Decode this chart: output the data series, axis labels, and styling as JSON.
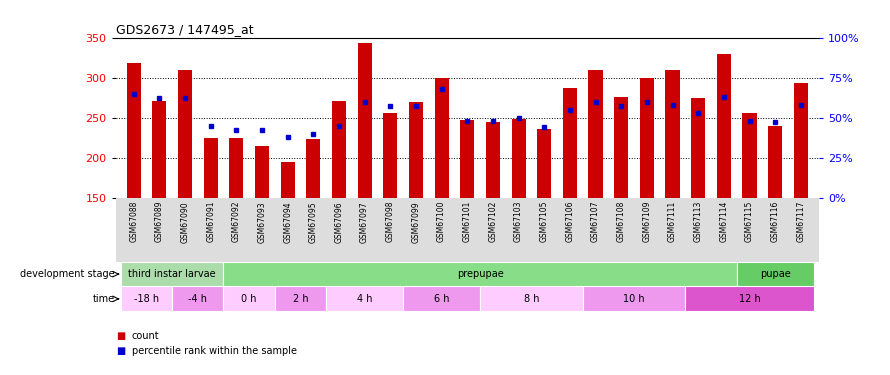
{
  "title": "GDS2673 / 147495_at",
  "samples": [
    "GSM67088",
    "GSM67089",
    "GSM67090",
    "GSM67091",
    "GSM67092",
    "GSM67093",
    "GSM67094",
    "GSM67095",
    "GSM67096",
    "GSM67097",
    "GSM67098",
    "GSM67099",
    "GSM67100",
    "GSM67101",
    "GSM67102",
    "GSM67103",
    "GSM67105",
    "GSM67106",
    "GSM67107",
    "GSM67108",
    "GSM67109",
    "GSM67111",
    "GSM67113",
    "GSM67114",
    "GSM67115",
    "GSM67116",
    "GSM67117"
  ],
  "counts": [
    318,
    271,
    309,
    224,
    224,
    215,
    195,
    223,
    271,
    343,
    256,
    269,
    300,
    247,
    244,
    248,
    236,
    287,
    310,
    276,
    300,
    309,
    275,
    329,
    256,
    240,
    293
  ],
  "percentile_ranks": [
    65,
    62,
    62,
    45,
    42,
    42,
    38,
    40,
    45,
    60,
    57,
    57,
    68,
    48,
    48,
    50,
    44,
    55,
    60,
    57,
    60,
    58,
    53,
    63,
    48,
    47,
    58
  ],
  "y_min": 150,
  "y_max": 350,
  "bar_color": "#cc0000",
  "percentile_color": "#0000cc",
  "background_color": "#ffffff",
  "plot_bg_color": "#ffffff",
  "stage_spans": [
    {
      "name": "third instar larvae",
      "start": 0,
      "end": 4,
      "color": "#aaddaa"
    },
    {
      "name": "prepupae",
      "start": 4,
      "end": 24,
      "color": "#88dd88"
    },
    {
      "name": "pupae",
      "start": 24,
      "end": 27,
      "color": "#66cc66"
    }
  ],
  "time_spans": [
    {
      "name": "-18 h",
      "start": 0,
      "end": 2,
      "color": "#ffccff"
    },
    {
      "name": "-4 h",
      "start": 2,
      "end": 4,
      "color": "#ee99ee"
    },
    {
      "name": "0 h",
      "start": 4,
      "end": 6,
      "color": "#ffccff"
    },
    {
      "name": "2 h",
      "start": 6,
      "end": 8,
      "color": "#ee99ee"
    },
    {
      "name": "4 h",
      "start": 8,
      "end": 11,
      "color": "#ffccff"
    },
    {
      "name": "6 h",
      "start": 11,
      "end": 14,
      "color": "#ee99ee"
    },
    {
      "name": "8 h",
      "start": 14,
      "end": 18,
      "color": "#ffccff"
    },
    {
      "name": "10 h",
      "start": 18,
      "end": 22,
      "color": "#ee99ee"
    },
    {
      "name": "12 h",
      "start": 22,
      "end": 27,
      "color": "#dd55cc"
    }
  ]
}
